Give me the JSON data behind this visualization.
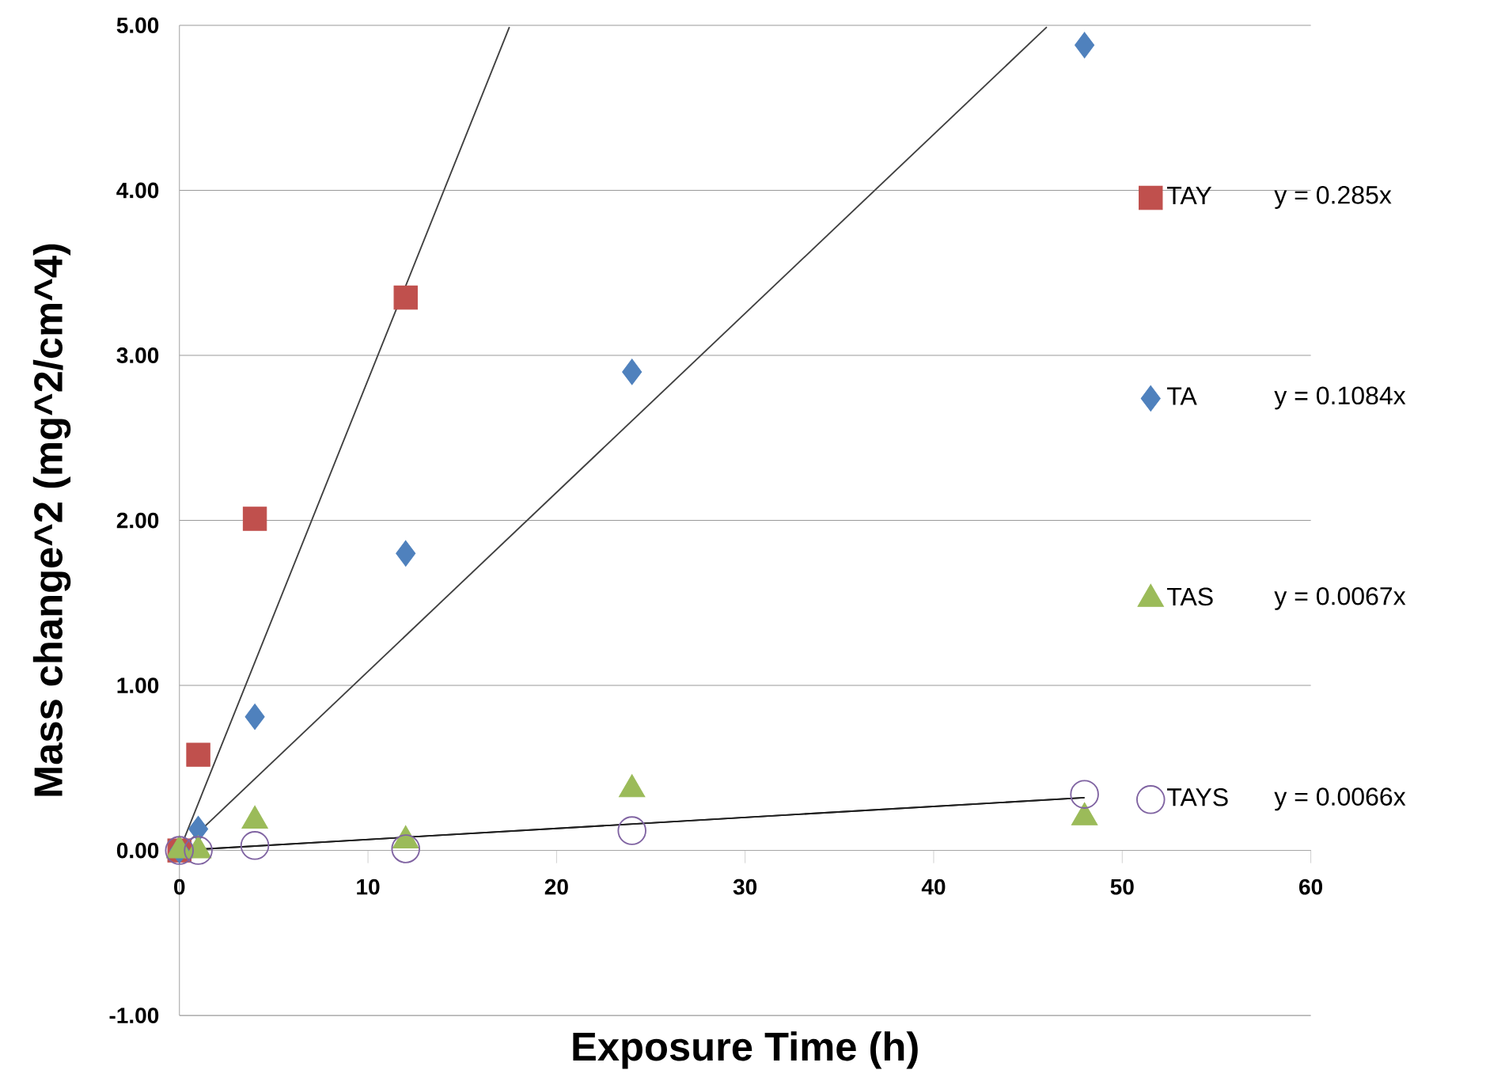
{
  "chart_data": {
    "type": "scatter",
    "xlabel": "Exposure Time (h)",
    "ylabel": "Mass change^2 (mg^2/cm^4)",
    "xlim": [
      0,
      60
    ],
    "ylim": [
      -1,
      5
    ],
    "xticks": [
      0,
      10,
      20,
      30,
      40,
      50,
      60
    ],
    "yticks": [
      {
        "value": -1,
        "label": "-1.00"
      },
      {
        "value": 0,
        "label": "0.00"
      },
      {
        "value": 1,
        "label": "1.00"
      },
      {
        "value": 2,
        "label": "2.00"
      },
      {
        "value": 3,
        "label": "3.00"
      },
      {
        "value": 4,
        "label": "4.00"
      },
      {
        "value": 5,
        "label": "5.00"
      }
    ],
    "grid": "y",
    "legend": "right",
    "series": [
      {
        "name": "TAY",
        "color": "#c0504d",
        "marker": "square",
        "x": [
          0,
          1,
          4,
          12
        ],
        "values": [
          0,
          0.58,
          2.01,
          3.35
        ]
      },
      {
        "name": "TA",
        "color": "#4f81bd",
        "marker": "diamond",
        "x": [
          0,
          1,
          4,
          12,
          24,
          48
        ],
        "values": [
          0,
          0.13,
          0.81,
          1.8,
          2.9,
          4.88
        ]
      },
      {
        "name": "TAS",
        "color": "#9bbb59",
        "marker": "triangle",
        "x": [
          0,
          1,
          4,
          12,
          24,
          48
        ],
        "values": [
          0,
          0.0,
          0.18,
          0.06,
          0.37,
          0.2
        ]
      },
      {
        "name": "TAYS",
        "color": "#8064a2",
        "marker": "circle",
        "x": [
          0,
          1,
          4,
          12,
          24,
          48
        ],
        "values": [
          0,
          0.0,
          0.03,
          0.01,
          0.12,
          0.34
        ]
      },
      {
        "type": "line",
        "color": "#404040",
        "x": [
          0,
          17.5
        ],
        "values": [
          0,
          4.99
        ]
      },
      {
        "type": "line",
        "color": "#404040",
        "x": [
          0,
          46
        ],
        "values": [
          0,
          4.99
        ]
      },
      {
        "type": "line",
        "color": "#202020",
        "x": [
          0,
          48
        ],
        "values": [
          0,
          0.32
        ]
      },
      {
        "type": "line",
        "color": "#202020",
        "x": [
          0,
          48
        ],
        "values": [
          0,
          0.32
        ]
      }
    ],
    "annotations": [
      "y = 0.285x",
      "y = 0.1084x",
      "y = 0.0067x",
      "y = 0.0066x"
    ]
  }
}
